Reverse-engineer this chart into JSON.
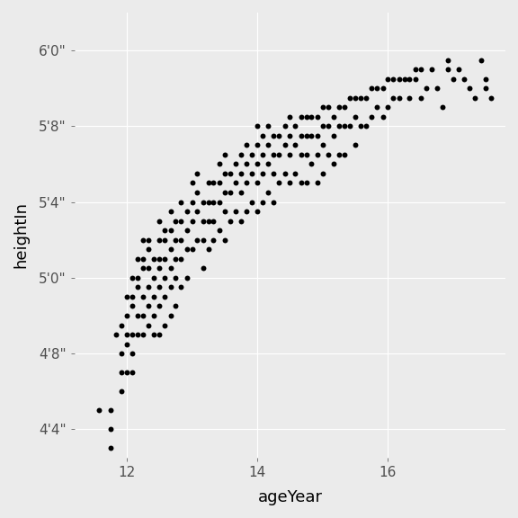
{
  "ages": [
    11.58,
    11.75,
    11.75,
    11.75,
    11.83,
    11.92,
    11.92,
    11.92,
    11.92,
    12.0,
    12.0,
    12.0,
    12.0,
    12.0,
    12.08,
    12.08,
    12.08,
    12.08,
    12.08,
    12.08,
    12.17,
    12.17,
    12.17,
    12.17,
    12.17,
    12.25,
    12.25,
    12.25,
    12.25,
    12.25,
    12.25,
    12.33,
    12.33,
    12.33,
    12.33,
    12.33,
    12.33,
    12.42,
    12.42,
    12.42,
    12.42,
    12.42,
    12.5,
    12.5,
    12.5,
    12.5,
    12.5,
    12.5,
    12.5,
    12.58,
    12.58,
    12.58,
    12.58,
    12.58,
    12.58,
    12.67,
    12.67,
    12.67,
    12.67,
    12.67,
    12.67,
    12.75,
    12.75,
    12.75,
    12.75,
    12.75,
    12.83,
    12.83,
    12.83,
    12.83,
    12.83,
    12.92,
    12.92,
    12.92,
    12.92,
    13.0,
    13.0,
    13.0,
    13.0,
    13.08,
    13.08,
    13.08,
    13.08,
    13.17,
    13.17,
    13.17,
    13.17,
    13.25,
    13.25,
    13.25,
    13.25,
    13.33,
    13.33,
    13.33,
    13.33,
    13.42,
    13.42,
    13.42,
    13.42,
    13.5,
    13.5,
    13.5,
    13.5,
    13.5,
    13.58,
    13.58,
    13.58,
    13.67,
    13.67,
    13.67,
    13.75,
    13.75,
    13.75,
    13.75,
    13.83,
    13.83,
    13.83,
    13.83,
    13.92,
    13.92,
    13.92,
    14.0,
    14.0,
    14.0,
    14.0,
    14.0,
    14.08,
    14.08,
    14.08,
    14.08,
    14.17,
    14.17,
    14.17,
    14.17,
    14.25,
    14.25,
    14.25,
    14.25,
    14.33,
    14.33,
    14.33,
    14.42,
    14.42,
    14.42,
    14.5,
    14.5,
    14.5,
    14.5,
    14.58,
    14.58,
    14.58,
    14.67,
    14.67,
    14.67,
    14.67,
    14.75,
    14.75,
    14.75,
    14.75,
    14.83,
    14.83,
    14.83,
    14.92,
    14.92,
    14.92,
    14.92,
    15.0,
    15.0,
    15.0,
    15.0,
    15.08,
    15.08,
    15.08,
    15.17,
    15.17,
    15.17,
    15.25,
    15.25,
    15.25,
    15.33,
    15.33,
    15.33,
    15.42,
    15.42,
    15.5,
    15.5,
    15.5,
    15.58,
    15.58,
    15.67,
    15.67,
    15.75,
    15.75,
    15.83,
    15.83,
    15.92,
    15.92,
    16.0,
    16.0,
    16.08,
    16.08,
    16.17,
    16.17,
    16.25,
    16.33,
    16.33,
    16.42,
    16.42,
    16.5,
    16.5,
    16.58,
    16.67,
    16.75,
    16.83,
    16.92,
    16.92,
    17.0,
    17.08,
    17.17,
    17.25,
    17.33,
    17.42,
    17.5,
    17.5,
    17.58
  ],
  "heights": [
    53.0,
    51.0,
    52.0,
    53.0,
    57.0,
    56.0,
    57.5,
    55.0,
    54.0,
    59.0,
    58.0,
    57.0,
    56.5,
    55.0,
    60.0,
    59.0,
    58.5,
    57.0,
    56.0,
    55.0,
    61.0,
    60.0,
    59.5,
    58.0,
    57.0,
    62.0,
    61.0,
    60.5,
    59.0,
    58.0,
    57.0,
    62.0,
    61.5,
    60.5,
    59.5,
    58.5,
    57.5,
    61.0,
    60.0,
    59.0,
    58.0,
    57.0,
    63.0,
    62.0,
    61.0,
    60.5,
    59.5,
    58.5,
    57.0,
    62.5,
    62.0,
    61.0,
    60.0,
    59.0,
    57.5,
    63.5,
    62.5,
    61.5,
    60.5,
    59.5,
    58.0,
    63.0,
    62.0,
    61.0,
    60.0,
    58.5,
    64.0,
    63.0,
    62.0,
    61.0,
    59.5,
    63.5,
    62.5,
    61.5,
    60.0,
    65.0,
    64.0,
    63.0,
    61.5,
    65.5,
    64.5,
    63.5,
    62.0,
    64.0,
    63.0,
    62.0,
    60.5,
    65.0,
    64.0,
    63.0,
    61.5,
    65.0,
    64.0,
    63.0,
    62.0,
    66.0,
    65.0,
    64.0,
    62.5,
    66.5,
    65.5,
    64.5,
    63.5,
    62.0,
    65.5,
    64.5,
    63.0,
    66.0,
    65.0,
    63.5,
    66.5,
    65.5,
    64.5,
    63.0,
    67.0,
    66.0,
    65.0,
    63.5,
    66.5,
    65.5,
    64.0,
    68.0,
    67.0,
    66.0,
    65.0,
    63.5,
    67.5,
    66.5,
    65.5,
    64.0,
    68.0,
    67.0,
    66.0,
    64.5,
    67.5,
    66.5,
    65.5,
    64.0,
    67.5,
    66.5,
    65.0,
    68.0,
    67.0,
    65.5,
    68.5,
    67.5,
    66.5,
    65.0,
    68.0,
    67.0,
    65.5,
    68.5,
    67.5,
    66.5,
    65.0,
    68.5,
    67.5,
    66.5,
    65.0,
    68.5,
    67.5,
    66.0,
    68.5,
    67.5,
    66.5,
    65.0,
    69.0,
    68.0,
    67.0,
    65.5,
    69.0,
    68.0,
    66.5,
    68.5,
    67.5,
    66.0,
    69.0,
    68.0,
    66.5,
    69.0,
    68.0,
    66.5,
    69.5,
    68.0,
    69.5,
    68.5,
    67.0,
    69.5,
    68.0,
    69.5,
    68.0,
    70.0,
    68.5,
    70.0,
    69.0,
    70.0,
    68.5,
    70.5,
    69.0,
    70.5,
    69.5,
    70.5,
    69.5,
    70.5,
    70.5,
    69.5,
    71.0,
    70.5,
    69.5,
    71.0,
    70.0,
    71.0,
    70.0,
    69.0,
    71.5,
    71.0,
    70.5,
    71.0,
    70.5,
    70.0,
    69.5,
    71.5,
    70.5,
    70.0,
    69.5
  ],
  "bg_color": "#EBEBEB",
  "point_color": "#000000",
  "point_size": 18,
  "xlabel": "ageYear",
  "ylabel": "heightIn",
  "xlim": [
    11.2,
    17.8
  ],
  "ylim": [
    50.5,
    74.0
  ],
  "xticks": [
    12,
    14,
    16
  ],
  "ytick_values": [
    52,
    56,
    60,
    64,
    68,
    72
  ],
  "ytick_labels": [
    "4'4\"",
    "4'8\"",
    "5'0\"",
    "5'4\"",
    "5'8\"",
    "6'0\""
  ],
  "grid_color": "#ffffff",
  "tick_label_color": "#4d4d4d",
  "tick_label_fontsize": 11,
  "axis_label_fontsize": 13
}
